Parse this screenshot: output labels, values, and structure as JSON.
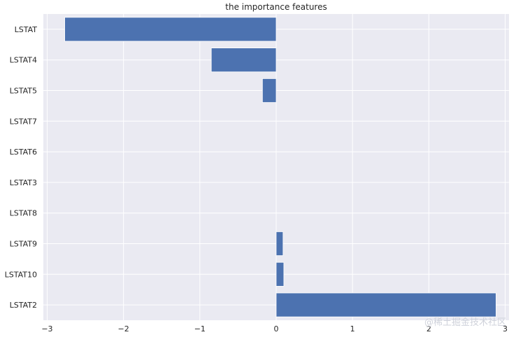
{
  "chart_data": {
    "type": "bar",
    "orientation": "horizontal",
    "title": "the importance features",
    "xlabel": "",
    "ylabel": "",
    "categories": [
      "LSTAT",
      "LSTAT4",
      "LSTAT5",
      "LSTAT7",
      "LSTAT6",
      "LSTAT3",
      "LSTAT8",
      "LSTAT9",
      "LSTAT10",
      "LSTAT2"
    ],
    "values": [
      -2.77,
      -0.85,
      -0.18,
      0.0,
      0.0,
      0.0,
      0.0,
      0.09,
      0.1,
      2.88
    ],
    "xlim": [
      -3.05,
      3.05
    ],
    "xticks": [
      -3,
      -2,
      -1,
      0,
      1,
      2,
      3
    ],
    "xtick_labels": [
      "−3",
      "−2",
      "−1",
      "0",
      "1",
      "2",
      "3"
    ],
    "grid": true,
    "colors": {
      "bar": "#4c72b0",
      "background": "#eaeaf2",
      "grid": "#ffffff",
      "text": "#262626"
    }
  },
  "watermark": "@稀土掘金技术社区"
}
